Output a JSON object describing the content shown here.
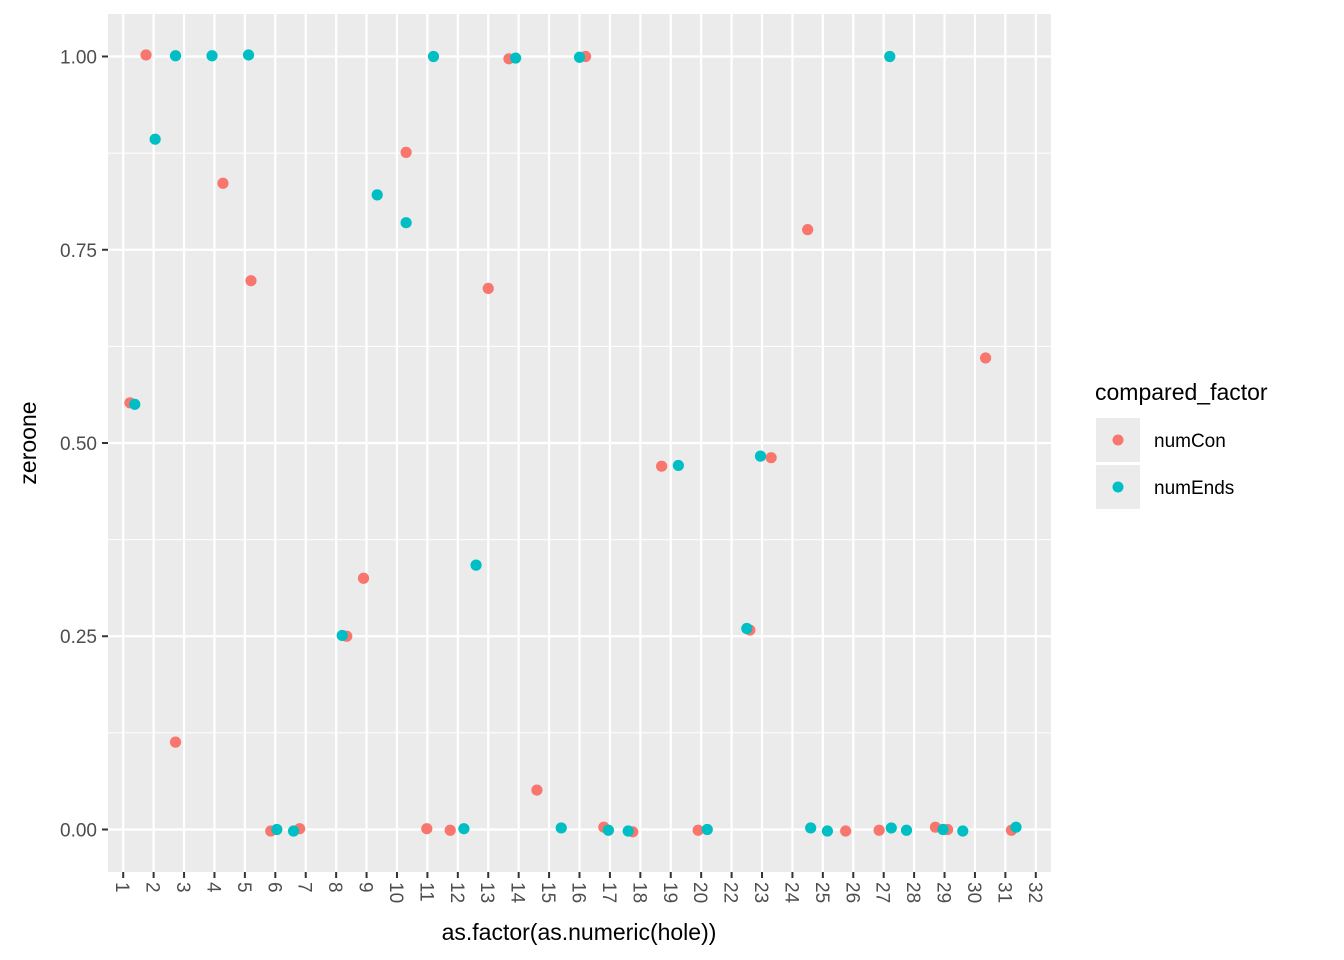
{
  "chart_data": {
    "type": "scatter",
    "title": "",
    "xlabel": "as.factor(as.numeric(hole))",
    "ylabel": "zeroone",
    "categories": [
      "1",
      "2",
      "3",
      "4",
      "5",
      "6",
      "7",
      "8",
      "9",
      "10",
      "11",
      "12",
      "13",
      "14",
      "15",
      "16",
      "17",
      "18",
      "19",
      "20",
      "22",
      "23",
      "24",
      "25",
      "26",
      "27",
      "28",
      "29",
      "30",
      "31",
      "32"
    ],
    "yticks": [
      "0.00",
      "0.25",
      "0.50",
      "0.75",
      "1.00"
    ],
    "ylim": [
      -0.055,
      1.055
    ],
    "grid": true,
    "legend": {
      "title": "compared_factor",
      "position": "right",
      "entries": [
        "numCon",
        "numEnds"
      ]
    },
    "colors": {
      "numCon": "#F8766D",
      "numEnds": "#00BFC4"
    },
    "series": [
      {
        "name": "numCon",
        "points": [
          {
            "x": 1.22,
            "y": 0.552
          },
          {
            "x": 1.75,
            "y": 1.002
          },
          {
            "x": 2.72,
            "y": 0.113
          },
          {
            "x": 4.28,
            "y": 0.836
          },
          {
            "x": 5.2,
            "y": 0.71
          },
          {
            "x": 5.85,
            "y": -0.002
          },
          {
            "x": 6.8,
            "y": 0.001
          },
          {
            "x": 8.35,
            "y": 0.25
          },
          {
            "x": 8.9,
            "y": 0.325
          },
          {
            "x": 10.3,
            "y": 0.876
          },
          {
            "x": 10.98,
            "y": 0.001
          },
          {
            "x": 11.75,
            "y": -0.001
          },
          {
            "x": 13.0,
            "y": 0.7
          },
          {
            "x": 13.68,
            "y": 0.997
          },
          {
            "x": 14.6,
            "y": 0.051
          },
          {
            "x": 16.2,
            "y": 1.0
          },
          {
            "x": 16.8,
            "y": 0.003
          },
          {
            "x": 17.75,
            "y": -0.003
          },
          {
            "x": 18.7,
            "y": 0.47
          },
          {
            "x": 19.9,
            "y": -0.001
          },
          {
            "x": 21.6,
            "y": 0.258
          },
          {
            "x": 22.3,
            "y": 0.481
          },
          {
            "x": 23.5,
            "y": 0.776
          },
          {
            "x": 24.75,
            "y": -0.002
          },
          {
            "x": 25.85,
            "y": -0.001
          },
          {
            "x": 27.7,
            "y": 0.003
          },
          {
            "x": 28.1,
            "y": 0.0
          },
          {
            "x": 29.35,
            "y": 0.61
          },
          {
            "x": 30.2,
            "y": -0.001
          }
        ]
      },
      {
        "name": "numEnds",
        "points": [
          {
            "x": 1.38,
            "y": 0.55
          },
          {
            "x": 2.05,
            "y": 0.893
          },
          {
            "x": 2.72,
            "y": 1.001
          },
          {
            "x": 3.92,
            "y": 1.001
          },
          {
            "x": 5.12,
            "y": 1.002
          },
          {
            "x": 6.05,
            "y": 0.0
          },
          {
            "x": 6.6,
            "y": -0.002
          },
          {
            "x": 8.2,
            "y": 0.251
          },
          {
            "x": 9.35,
            "y": 0.821
          },
          {
            "x": 10.3,
            "y": 0.785
          },
          {
            "x": 11.2,
            "y": 1.0
          },
          {
            "x": 12.2,
            "y": 0.001
          },
          {
            "x": 12.6,
            "y": 0.342
          },
          {
            "x": 13.9,
            "y": 0.998
          },
          {
            "x": 15.4,
            "y": 0.002
          },
          {
            "x": 16.0,
            "y": 0.999
          },
          {
            "x": 16.95,
            "y": -0.001
          },
          {
            "x": 17.6,
            "y": -0.002
          },
          {
            "x": 19.25,
            "y": 0.471
          },
          {
            "x": 20.2,
            "y": 0.0
          },
          {
            "x": 21.5,
            "y": 0.26
          },
          {
            "x": 21.95,
            "y": 0.483
          },
          {
            "x": 23.6,
            "y": 0.002
          },
          {
            "x": 24.15,
            "y": -0.002
          },
          {
            "x": 26.25,
            "y": 0.002
          },
          {
            "x": 26.2,
            "y": 1.0
          },
          {
            "x": 26.75,
            "y": -0.001
          },
          {
            "x": 27.95,
            "y": 0.0
          },
          {
            "x": 28.6,
            "y": -0.002
          },
          {
            "x": 30.35,
            "y": 0.003
          }
        ]
      }
    ]
  }
}
